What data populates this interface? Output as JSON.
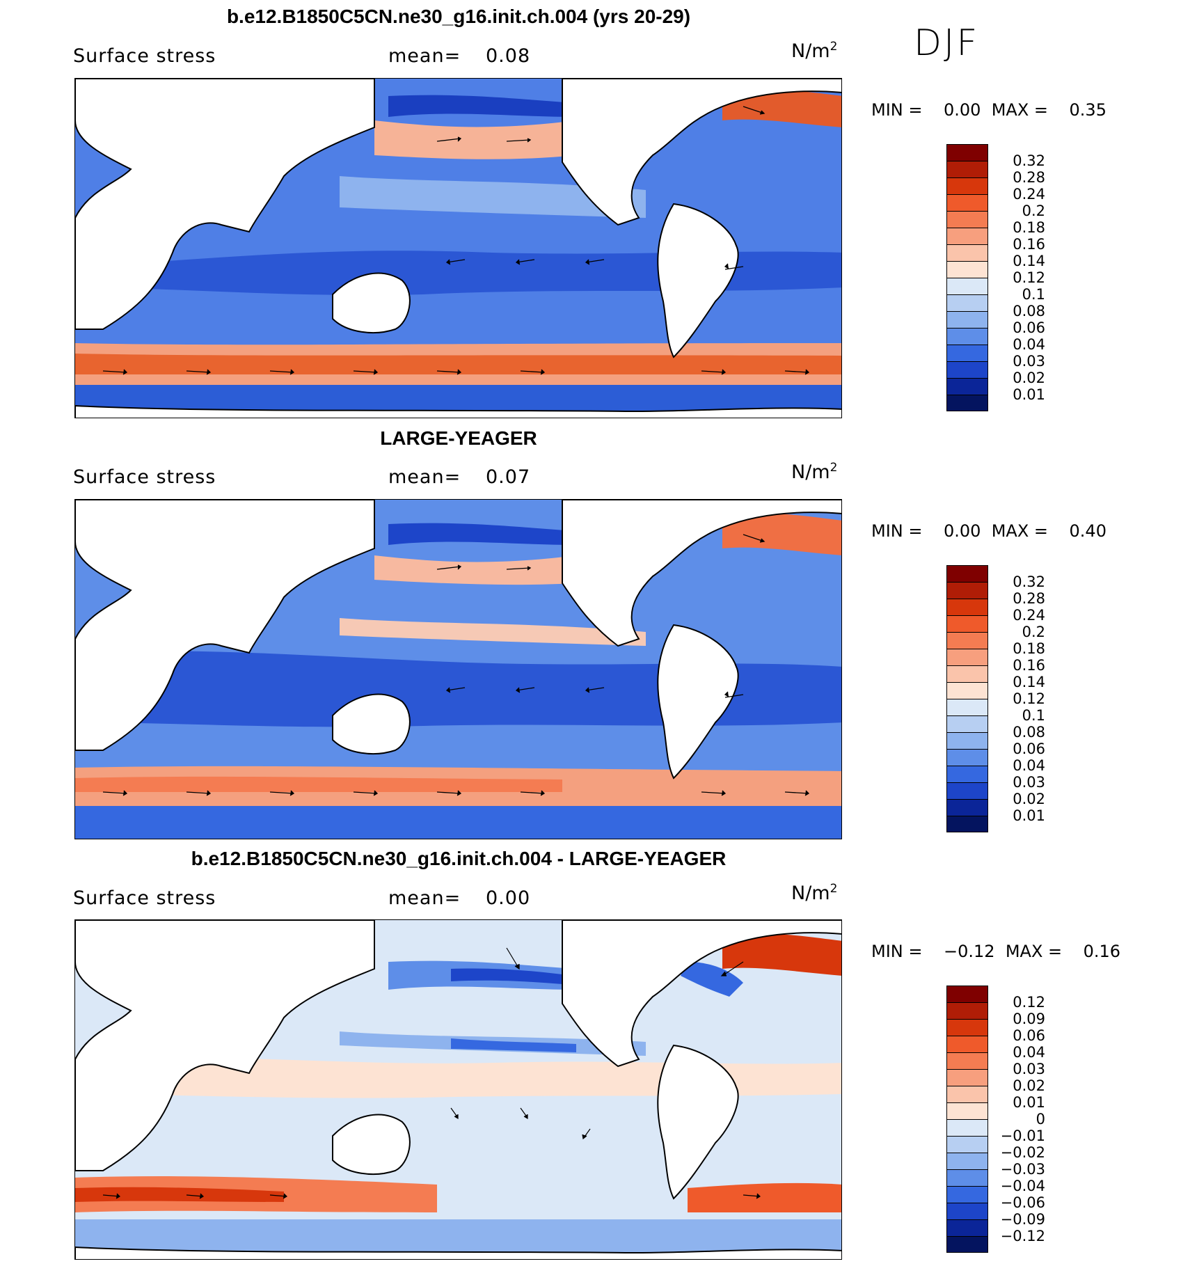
{
  "season": "DJF",
  "units_base": "N/m",
  "units_exp": "2",
  "panels": [
    {
      "title": "b.e12.B1850C5CN.ne30_g16.init.ch.004 (yrs 20-29)",
      "variable": "Surface stress",
      "mean_label": "mean=",
      "mean_value": "0.08",
      "min_label": "MIN =",
      "min_value": "0.00",
      "max_label": "MAX =",
      "max_value": "0.35",
      "levels": [
        "0.32",
        "0.28",
        "0.24",
        "0.2",
        "0.18",
        "0.16",
        "0.14",
        "0.12",
        "0.1",
        "0.08",
        "0.06",
        "0.04",
        "0.03",
        "0.02",
        "0.01"
      ],
      "colors": [
        "#7f0000",
        "#b01d06",
        "#d7370c",
        "#ef5a2b",
        "#f47c52",
        "#f79f7e",
        "#fac4ab",
        "#fde3d3",
        "#dbe8f7",
        "#b7cff2",
        "#8eb3ee",
        "#5e8ee8",
        "#3568e0",
        "#1d45c9",
        "#0b2598",
        "#04145f"
      ]
    },
    {
      "title": "LARGE-YEAGER",
      "variable": "Surface stress",
      "mean_label": "mean=",
      "mean_value": "0.07",
      "min_label": "MIN =",
      "min_value": "0.00",
      "max_label": "MAX =",
      "max_value": "0.40",
      "levels": [
        "0.32",
        "0.28",
        "0.24",
        "0.2",
        "0.18",
        "0.16",
        "0.14",
        "0.12",
        "0.1",
        "0.08",
        "0.06",
        "0.04",
        "0.03",
        "0.02",
        "0.01"
      ],
      "colors": [
        "#7f0000",
        "#b01d06",
        "#d7370c",
        "#ef5a2b",
        "#f47c52",
        "#f79f7e",
        "#fac4ab",
        "#fde3d3",
        "#dbe8f7",
        "#b7cff2",
        "#8eb3ee",
        "#5e8ee8",
        "#3568e0",
        "#1d45c9",
        "#0b2598",
        "#04145f"
      ]
    },
    {
      "title": "b.e12.B1850C5CN.ne30_g16.init.ch.004 - LARGE-YEAGER",
      "variable": "Surface stress",
      "mean_label": "mean=",
      "mean_value": "0.00",
      "min_label": "MIN =",
      "min_value": "−0.12",
      "max_label": "MAX =",
      "max_value": "0.16",
      "levels": [
        "0.12",
        "0.09",
        "0.06",
        "0.04",
        "0.03",
        "0.02",
        "0.01",
        "0",
        "−0.01",
        "−0.02",
        "−0.03",
        "−0.04",
        "−0.06",
        "−0.09",
        "−0.12"
      ],
      "colors": [
        "#7f0000",
        "#b01d06",
        "#d7370c",
        "#ef5a2b",
        "#f47c52",
        "#f79f7e",
        "#fac4ab",
        "#fde3d3",
        "#dbe8f7",
        "#b7cff2",
        "#8eb3ee",
        "#5e8ee8",
        "#3568e0",
        "#1d45c9",
        "#0b2598",
        "#04145f"
      ]
    }
  ]
}
